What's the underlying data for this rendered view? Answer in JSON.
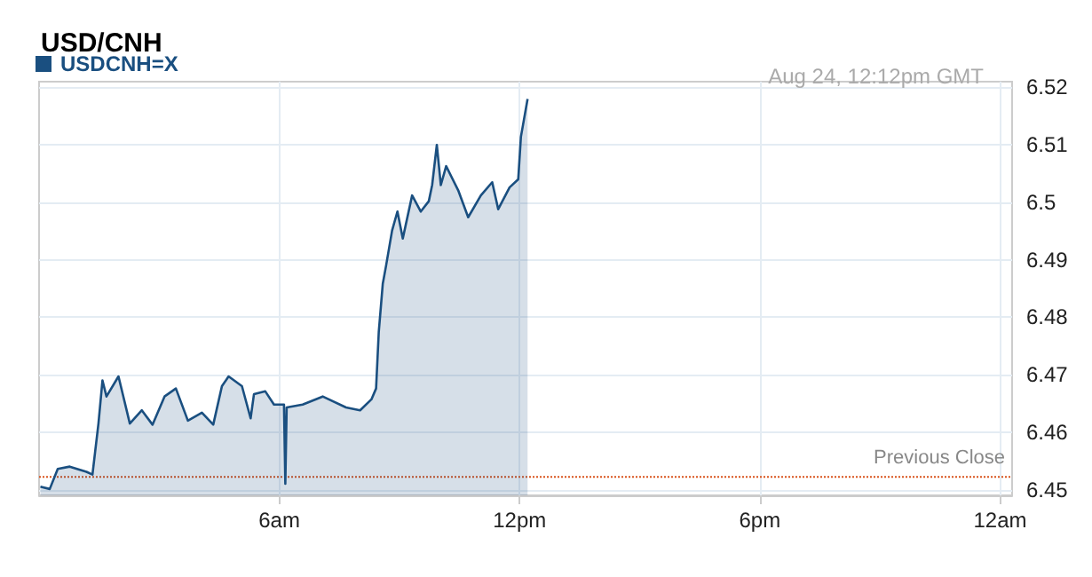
{
  "chart_data": {
    "type": "area",
    "title": "USD/CNH",
    "subtitle": "Aug 24, 12:12pm GMT",
    "legend": "top left",
    "grid": true,
    "marker": "none",
    "xlim": [
      "--08-24T00:00",
      "--08-25T00:18"
    ],
    "xticks": [
      {
        "value": "--08-24T06:00",
        "label": "6am"
      },
      {
        "value": "--08-24T12:00",
        "label": "12pm"
      },
      {
        "value": "--08-24T18:00",
        "label": "6pm"
      },
      {
        "value": "--08-25T00:00",
        "label": "12am"
      }
    ],
    "ylim": [
      6.449,
      6.521
    ],
    "yticks": [
      6.45,
      6.46,
      6.47,
      6.48,
      6.49,
      6.5,
      6.51,
      6.52
    ],
    "ref_lines": [
      {
        "axis": "y",
        "value": 6.4522,
        "label": "Previous Close",
        "color": "#d9541e",
        "line_style": "dotted"
      }
    ],
    "series": [
      {
        "name": "USDCNH=X",
        "color": "#1a4f80",
        "x": [
          "--08-24T00:02",
          "--08-24T00:16",
          "--08-24T00:28",
          "--08-24T00:46",
          "--08-24T01:11",
          "--08-24T01:20",
          "--08-24T01:29",
          "--08-24T01:35",
          "--08-24T01:41",
          "--08-24T01:59",
          "--08-24T02:16",
          "--08-24T02:34",
          "--08-24T02:50",
          "--08-24T03:08",
          "--08-24T03:25",
          "--08-24T03:43",
          "--08-24T04:04",
          "--08-24T04:21",
          "--08-24T04:34",
          "--08-24T04:44",
          "--08-24T05:04",
          "--08-24T05:17",
          "--08-24T05:22",
          "--08-24T05:39",
          "--08-24T05:52",
          "--08-24T06:07",
          "--08-24T06:09",
          "--08-24T06:11",
          "--08-24T06:35",
          "--08-24T07:05",
          "--08-24T07:40",
          "--08-24T08:01",
          "--08-24T08:18",
          "--08-24T08:25",
          "--08-24T08:29",
          "--08-24T08:35",
          "--08-24T08:40",
          "--08-24T08:49",
          "--08-24T08:57",
          "--08-24T09:05",
          "--08-24T09:19",
          "--08-24T09:32",
          "--08-24T09:44",
          "--08-24T09:49",
          "--08-24T09:56",
          "--08-24T10:02",
          "--08-24T10:10",
          "--08-24T10:28",
          "--08-24T10:43",
          "--08-24T11:02",
          "--08-24T11:19",
          "--08-24T11:28",
          "--08-24T11:45",
          "--08-24T11:58",
          "--08-24T12:02",
          "--08-24T12:12"
        ],
        "values": [
          6.4505,
          6.4501,
          6.4536,
          6.454,
          6.4531,
          6.4526,
          6.4615,
          6.469,
          6.4662,
          6.4697,
          6.4615,
          6.4638,
          6.4613,
          6.4662,
          6.4676,
          6.462,
          6.4634,
          6.4613,
          6.468,
          6.4697,
          6.468,
          6.4624,
          6.4666,
          6.4671,
          6.4648,
          6.4648,
          6.451,
          6.4643,
          6.4648,
          6.4662,
          6.4643,
          6.4638,
          6.4657,
          6.4676,
          6.4774,
          6.4858,
          6.489,
          6.4951,
          6.4984,
          6.4937,
          6.5012,
          6.4984,
          6.5002,
          6.503,
          6.51,
          6.503,
          6.5063,
          6.5021,
          6.4974,
          6.5012,
          6.5035,
          6.4988,
          6.5026,
          6.504,
          6.5114,
          6.518
        ]
      }
    ]
  }
}
